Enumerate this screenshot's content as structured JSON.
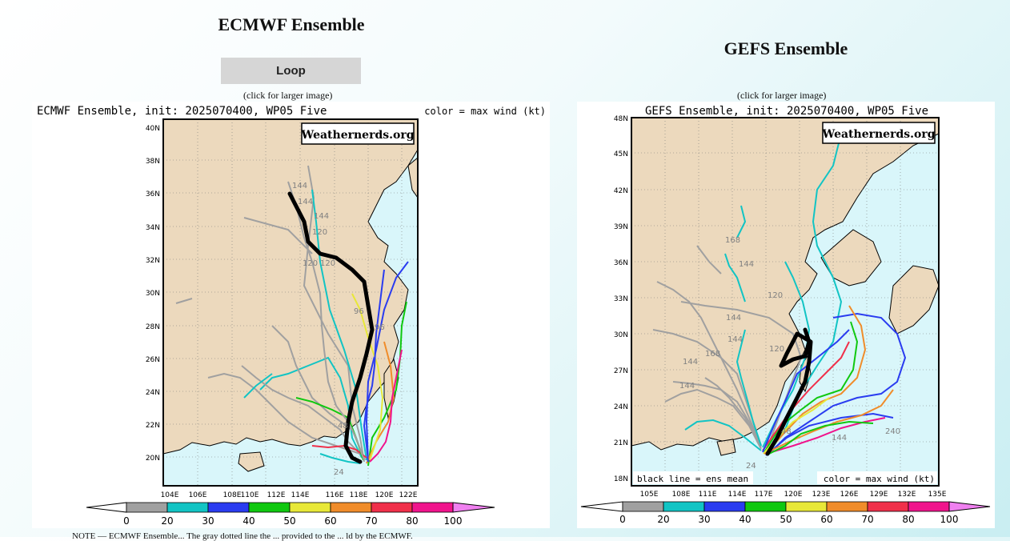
{
  "ecmwf": {
    "title": "ECMWF Ensemble",
    "loop_label": "Loop",
    "click_note": "(click for larger image)",
    "plot_title": "ECMWF Ensemble, init: 2025070400, WP05 Five",
    "color_note": "color = max wind (kt)",
    "watermark": "Weathernerds.org",
    "lat_labels": [
      "40N",
      "38N",
      "36N",
      "34N",
      "32N",
      "30N",
      "28N",
      "26N",
      "24N",
      "22N",
      "20N"
    ],
    "lon_labels": [
      "104E",
      "106E",
      "108E",
      "110E",
      "112E",
      "114E",
      "116E",
      "118E",
      "120E",
      "122E"
    ],
    "hour_labels": [
      "144",
      "144",
      "144",
      "120",
      "120",
      "120",
      "96",
      "96",
      "48",
      "24"
    ]
  },
  "gefs": {
    "title": "GEFS Ensemble",
    "click_note": "(click for larger image)",
    "plot_title": "GEFS Ensemble, init: 2025070400, WP05 Five",
    "color_note": "color = max wind (kt)",
    "mean_note": "black line = ens mean",
    "watermark": "Weathernerds.org",
    "lat_labels": [
      "48N",
      "45N",
      "42N",
      "39N",
      "36N",
      "33N",
      "30N",
      "27N",
      "24N",
      "21N",
      "18N"
    ],
    "lon_labels": [
      "105E",
      "108E",
      "111E",
      "114E",
      "117E",
      "120E",
      "123E",
      "126E",
      "129E",
      "132E",
      "135E"
    ],
    "hour_labels": [
      "168",
      "144",
      "144",
      "168",
      "144",
      "120",
      "120",
      "144",
      "144",
      "240",
      "144",
      "48",
      "24"
    ]
  },
  "colorbar": {
    "ticks": [
      "0",
      "20",
      "30",
      "40",
      "50",
      "60",
      "70",
      "80",
      "100"
    ],
    "colors": [
      "#a0a0a0",
      "#12c4c4",
      "#2a3cf0",
      "#10c810",
      "#e8e838",
      "#f08c2a",
      "#f0304a",
      "#f0148c"
    ],
    "end_color": "#f080f0"
  },
  "footnote": "NOTE — ECMWF Ensemble... The gray dotted line the ... provided to the ... ld by the ECMWF."
}
